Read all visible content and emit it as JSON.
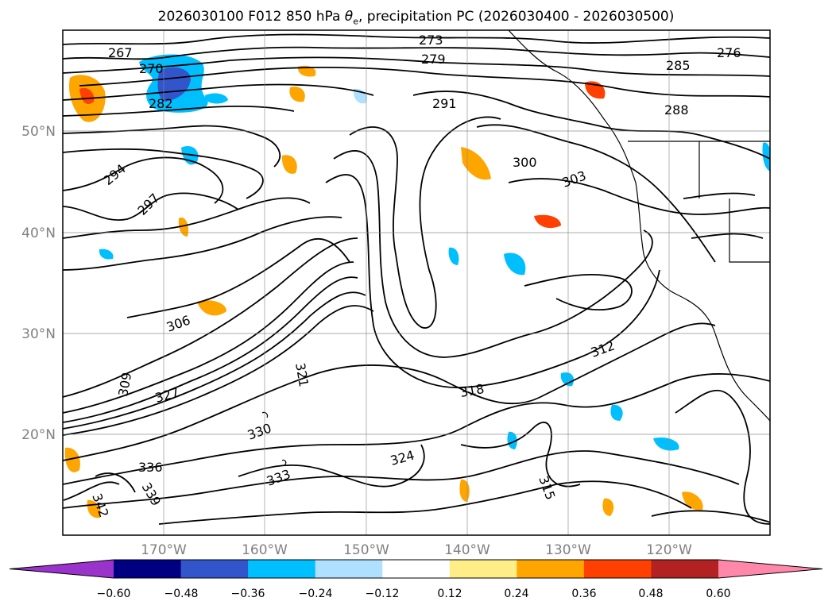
{
  "title": {
    "prefix": "2026030100 F012 850 hPa ",
    "theta": "θ",
    "sub": "e",
    "suffix": ", precipitation PC (2026030400 - 2026030500)"
  },
  "lat_labels": [
    "50°N",
    "40°N",
    "30°N",
    "20°N"
  ],
  "lon_labels": [
    "170°W",
    "160°W",
    "150°W",
    "140°W",
    "130°W",
    "120°W"
  ],
  "colorbar": {
    "ticks": [
      "−0.60",
      "−0.48",
      "−0.36",
      "−0.24",
      "−0.12",
      "0.12",
      "0.24",
      "0.36",
      "0.48",
      "0.60"
    ],
    "colors": [
      "#9933cc",
      "#000080",
      "#3355cc",
      "#00bfff",
      "#b0e0ff",
      "#ffffff",
      "#ffee88",
      "#ffa500",
      "#ff4000",
      "#b22222",
      "#ff88aa"
    ]
  },
  "contour_labels": [
    "267",
    "270",
    "273",
    "276",
    "279",
    "282",
    "285",
    "288",
    "291",
    "294",
    "297",
    "300",
    "303",
    "306",
    "309",
    "312",
    "315",
    "318",
    "321",
    "324",
    "327",
    "330",
    "333",
    "336",
    "339",
    "342"
  ]
}
